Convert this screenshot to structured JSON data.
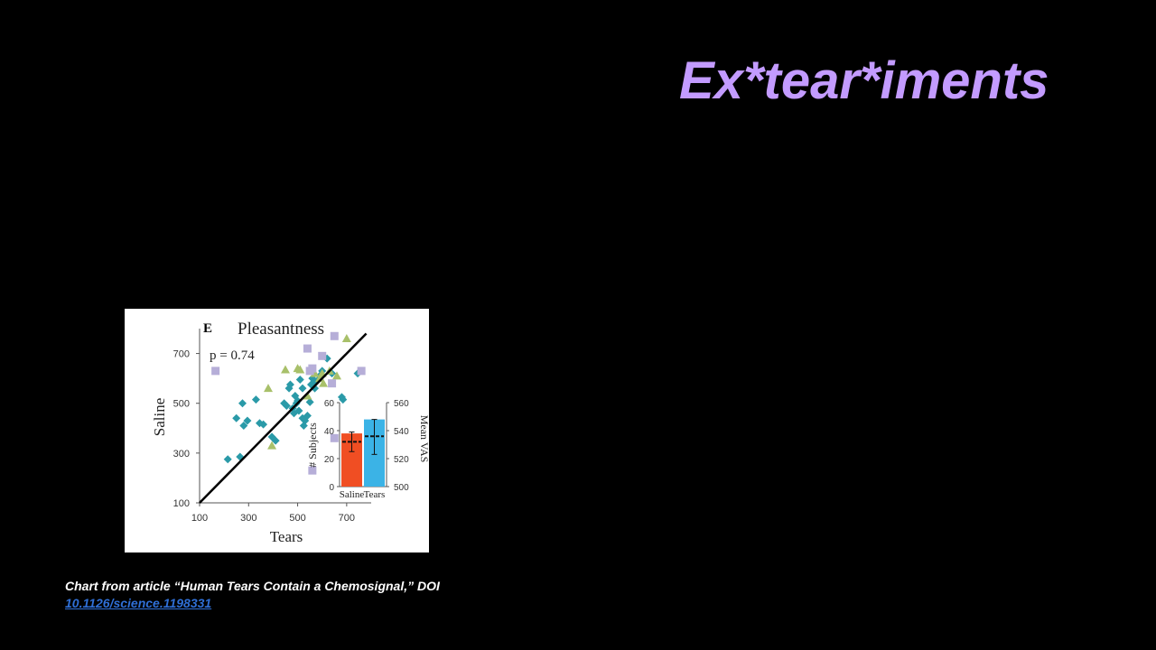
{
  "slide": {
    "title": "Ex*tear*iments",
    "caption_text": "Chart from article “Human Tears Contain a Chemosignal,” DOI",
    "caption_link": "10.1126/science.1198331"
  },
  "colors": {
    "title": "#c39bff",
    "diamond": "#2a9aa8",
    "triangle": "#a8c06a",
    "square": "#b6aed8",
    "saline_bar": "#f04e23",
    "tears_bar": "#3bb3e6",
    "link": "#2f6fd6"
  },
  "chart_data": [
    {
      "type": "scatter",
      "panel_label": "E",
      "title": "Pleasantness",
      "annotation": "p = 0.74",
      "xlabel": "Tears",
      "ylabel": "Saline",
      "xlim": [
        100,
        800
      ],
      "ylim": [
        100,
        800
      ],
      "xticks": [
        100,
        300,
        500,
        700
      ],
      "yticks": [
        100,
        300,
        500,
        700
      ],
      "identity_line": [
        [
          100,
          100
        ],
        [
          780,
          780
        ]
      ],
      "series": [
        {
          "marker": "diamond",
          "points": [
            [
              215,
              275
            ],
            [
              250,
              440
            ],
            [
              265,
              285
            ],
            [
              275,
              500
            ],
            [
              280,
              410
            ],
            [
              295,
              430
            ],
            [
              330,
              515
            ],
            [
              345,
              420
            ],
            [
              360,
              415
            ],
            [
              395,
              365
            ],
            [
              410,
              350
            ],
            [
              445,
              500
            ],
            [
              455,
              490
            ],
            [
              465,
              560
            ],
            [
              470,
              575
            ],
            [
              480,
              480
            ],
            [
              485,
              460
            ],
            [
              490,
              530
            ],
            [
              495,
              500
            ],
            [
              500,
              510
            ],
            [
              505,
              470
            ],
            [
              510,
              595
            ],
            [
              520,
              560
            ],
            [
              520,
              440
            ],
            [
              525,
              410
            ],
            [
              530,
              430
            ],
            [
              540,
              450
            ],
            [
              550,
              505
            ],
            [
              555,
              575
            ],
            [
              560,
              600
            ],
            [
              565,
              580
            ],
            [
              570,
              560
            ],
            [
              580,
              590
            ],
            [
              590,
              610
            ],
            [
              600,
              630
            ],
            [
              620,
              680
            ],
            [
              640,
              620
            ],
            [
              680,
              525
            ],
            [
              685,
              515
            ],
            [
              745,
              620
            ]
          ]
        },
        {
          "marker": "triangle",
          "points": [
            [
              380,
              560
            ],
            [
              395,
              330
            ],
            [
              450,
              635
            ],
            [
              500,
              640
            ],
            [
              510,
              635
            ],
            [
              540,
              530
            ],
            [
              570,
              620
            ],
            [
              590,
              600
            ],
            [
              600,
              620
            ],
            [
              605,
              580
            ],
            [
              630,
              630
            ],
            [
              660,
              610
            ],
            [
              700,
              760
            ]
          ]
        },
        {
          "marker": "square",
          "points": [
            [
              165,
              630
            ],
            [
              540,
              720
            ],
            [
              550,
              630
            ],
            [
              560,
              640
            ],
            [
              600,
              690
            ],
            [
              640,
              580
            ],
            [
              650,
              360
            ],
            [
              650,
              770
            ],
            [
              760,
              630
            ],
            [
              560,
              230
            ]
          ]
        }
      ]
    },
    {
      "type": "bar",
      "categories": [
        "Saline",
        "Tears"
      ],
      "values": [
        38,
        48
      ],
      "ylabel": "# Subjects",
      "ylim": [
        0,
        60
      ],
      "yticks": [
        0,
        20,
        40,
        60
      ],
      "y2label": "Mean VAS",
      "y2lim": [
        500,
        560
      ],
      "y2ticks": [
        500,
        520,
        540,
        560
      ],
      "means": [
        532,
        536
      ],
      "error_low": [
        525,
        523
      ],
      "error_high": [
        539,
        548
      ]
    }
  ]
}
